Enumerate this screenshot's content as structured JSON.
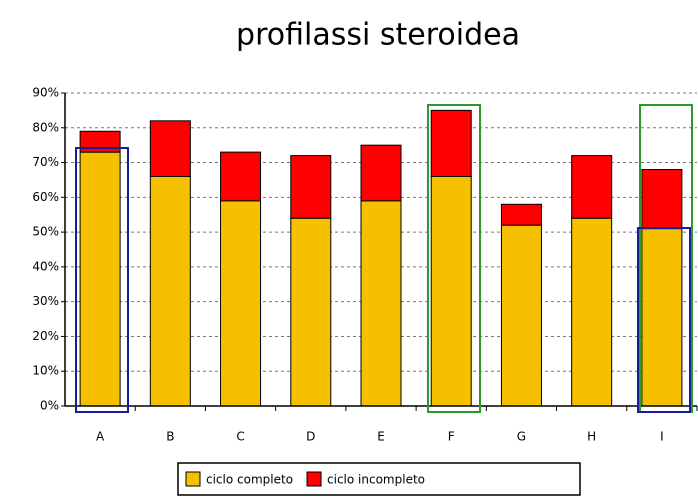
{
  "chart_data": {
    "type": "bar",
    "stacked": true,
    "title": "profilassi steroidea",
    "categories": [
      "A",
      "B",
      "C",
      "D",
      "E",
      "F",
      "G",
      "H",
      "I"
    ],
    "series": [
      {
        "name": "ciclo completo",
        "color": "#f5c000",
        "values": [
          73,
          66,
          59,
          54,
          59,
          66,
          52,
          54,
          51
        ]
      },
      {
        "name": "ciclo incompleto",
        "color": "#ff0000",
        "values": [
          6,
          16,
          14,
          18,
          16,
          19,
          6,
          18,
          17
        ]
      }
    ],
    "ylim": [
      0,
      90
    ],
    "yticks": [
      {
        "value": 0,
        "label": "0%"
      },
      {
        "value": 10,
        "label": "10%"
      },
      {
        "value": 20,
        "label": "20%"
      },
      {
        "value": 30,
        "label": "30%"
      },
      {
        "value": 40,
        "label": "40%"
      },
      {
        "value": 50,
        "label": "50%"
      },
      {
        "value": 60,
        "label": "60%"
      },
      {
        "value": 70,
        "label": "70%"
      },
      {
        "value": 80,
        "label": "80%"
      },
      {
        "value": 90,
        "label": "90%"
      }
    ],
    "grid": true,
    "legend": "bottom"
  }
}
